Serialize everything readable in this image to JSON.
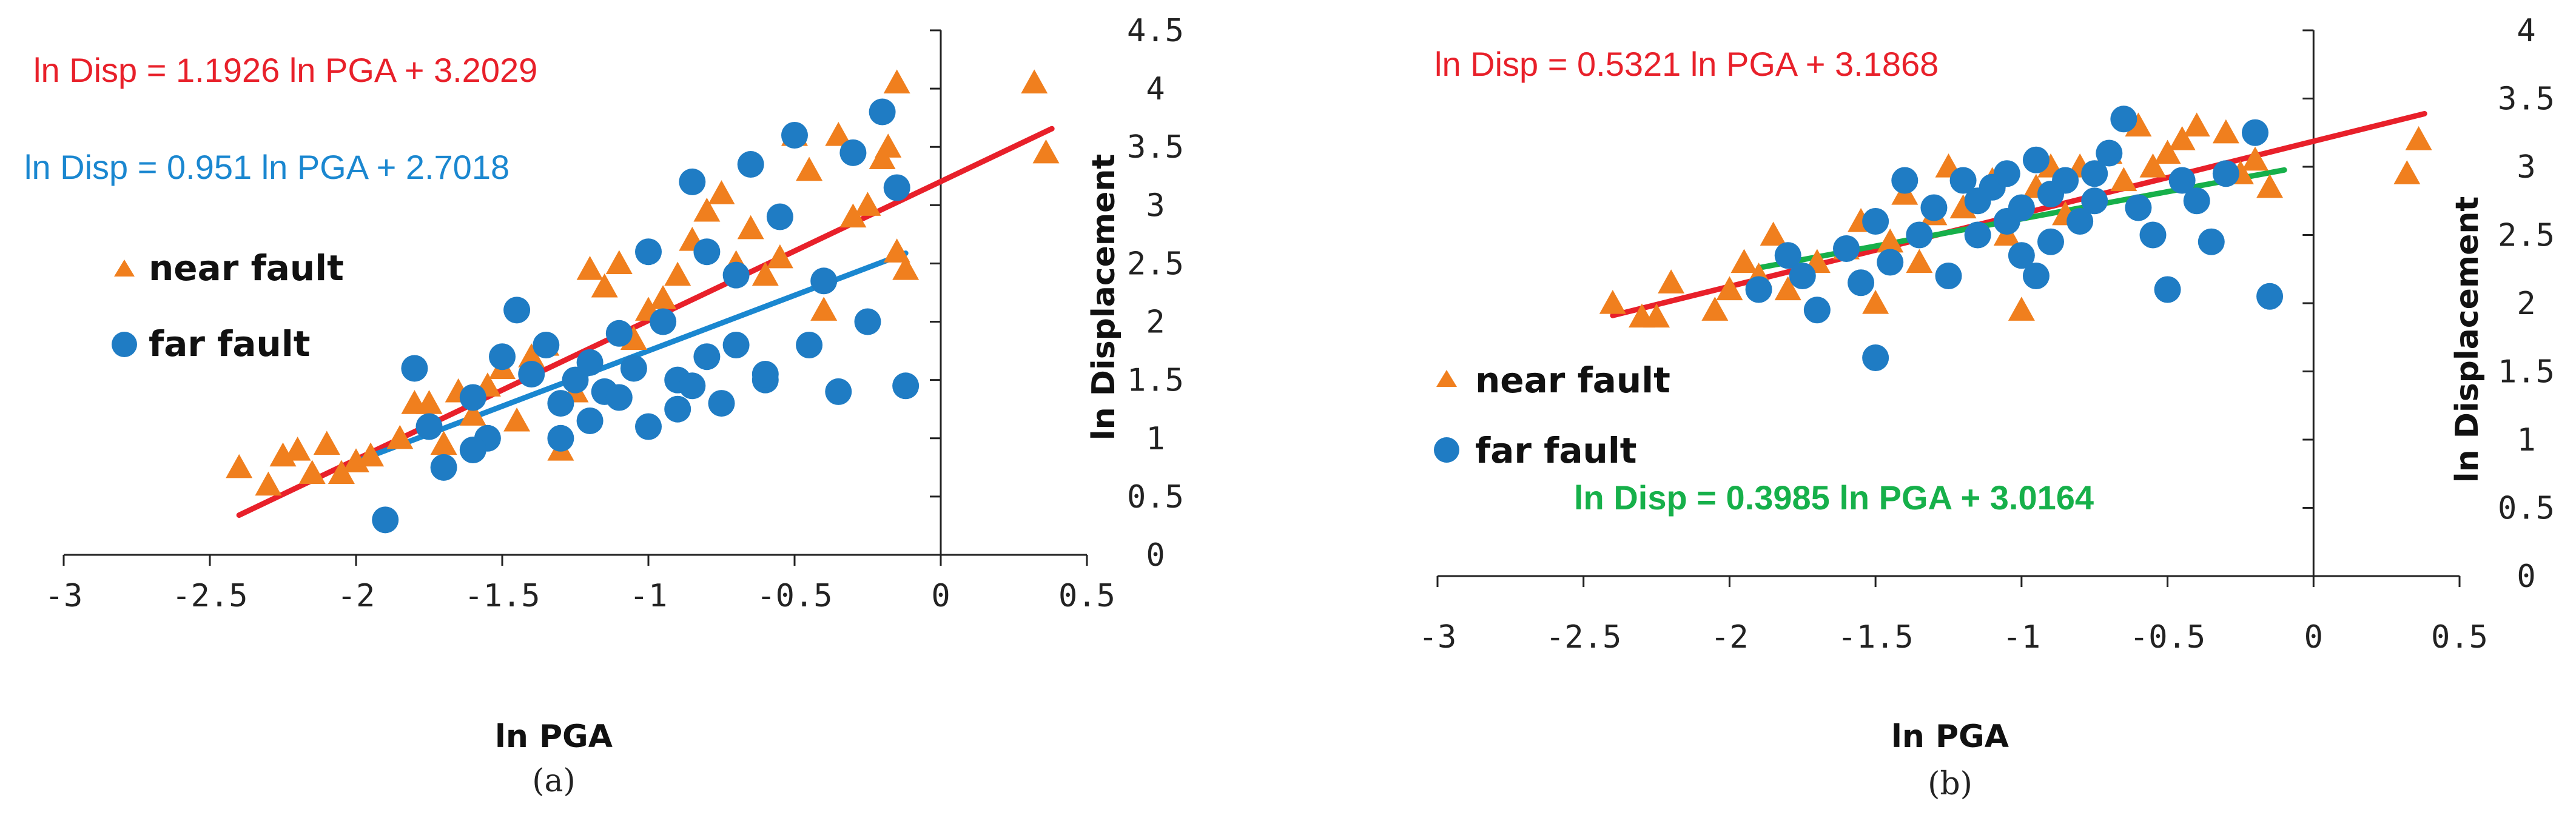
{
  "colors": {
    "near": "#f07f1e",
    "far": "#1f7cc4",
    "fit_red": "#e8202a",
    "fit_blue": "#1a87d0",
    "fit_green": "#16b04a",
    "axis": "#222222"
  },
  "chart_data": [
    {
      "type": "scatter",
      "panel_label": "(a)",
      "xlabel": "ln PGA",
      "ylabel": "ln Displacement",
      "xlim": [
        -3,
        0.5
      ],
      "ylim": [
        0,
        4.5
      ],
      "x_ticks": [
        -3,
        -2.5,
        -2,
        -1.5,
        -1,
        -0.5,
        0,
        0.5
      ],
      "x_tick_labels": [
        "-3",
        "-2.5",
        "-2",
        "-1.5",
        "-1",
        "-0.5",
        "0",
        "0.5"
      ],
      "y_ticks": [
        0,
        0.5,
        1,
        1.5,
        2,
        2.5,
        3,
        3.5,
        4,
        4.5
      ],
      "y_tick_labels": [
        "0",
        "0.5",
        "1",
        "1.5",
        "2",
        "2.5",
        "3",
        "3.5",
        "4",
        "4.5"
      ],
      "legend": {
        "near_label": "near fault",
        "far_label": "far fault"
      },
      "series": [
        {
          "name": "near fault",
          "marker": "triangle",
          "points": [
            [
              -2.4,
              0.75
            ],
            [
              -2.3,
              0.6
            ],
            [
              -2.25,
              0.85
            ],
            [
              -2.2,
              0.9
            ],
            [
              -2.15,
              0.7
            ],
            [
              -2.1,
              0.95
            ],
            [
              -2.05,
              0.7
            ],
            [
              -2.0,
              0.8
            ],
            [
              -1.95,
              0.85
            ],
            [
              -1.85,
              1.0
            ],
            [
              -1.8,
              1.3
            ],
            [
              -1.75,
              1.3
            ],
            [
              -1.7,
              0.95
            ],
            [
              -1.65,
              1.4
            ],
            [
              -1.6,
              1.2
            ],
            [
              -1.55,
              1.45
            ],
            [
              -1.5,
              1.6
            ],
            [
              -1.45,
              1.15
            ],
            [
              -1.4,
              1.7
            ],
            [
              -1.35,
              1.8
            ],
            [
              -1.3,
              0.9
            ],
            [
              -1.25,
              1.4
            ],
            [
              -1.2,
              2.45
            ],
            [
              -1.15,
              2.3
            ],
            [
              -1.1,
              2.5
            ],
            [
              -1.05,
              1.85
            ],
            [
              -1.0,
              2.1
            ],
            [
              -0.95,
              2.2
            ],
            [
              -0.9,
              2.4
            ],
            [
              -0.85,
              2.7
            ],
            [
              -0.8,
              2.95
            ],
            [
              -0.75,
              3.1
            ],
            [
              -0.7,
              2.5
            ],
            [
              -0.65,
              2.8
            ],
            [
              -0.6,
              2.4
            ],
            [
              -0.55,
              2.55
            ],
            [
              -0.5,
              3.6
            ],
            [
              -0.45,
              3.3
            ],
            [
              -0.4,
              2.1
            ],
            [
              -0.35,
              3.6
            ],
            [
              -0.3,
              2.9
            ],
            [
              -0.25,
              3.0
            ],
            [
              -0.2,
              3.4
            ],
            [
              -0.18,
              3.5
            ],
            [
              -0.15,
              4.05
            ],
            [
              -0.15,
              2.6
            ],
            [
              -0.12,
              2.45
            ],
            [
              0.32,
              4.05
            ],
            [
              0.36,
              3.45
            ]
          ]
        },
        {
          "name": "far fault",
          "marker": "circle",
          "points": [
            [
              -1.9,
              0.3
            ],
            [
              -1.8,
              1.6
            ],
            [
              -1.75,
              1.1
            ],
            [
              -1.7,
              0.75
            ],
            [
              -1.6,
              1.35
            ],
            [
              -1.55,
              1.0
            ],
            [
              -1.5,
              1.7
            ],
            [
              -1.45,
              2.1
            ],
            [
              -1.4,
              1.55
            ],
            [
              -1.35,
              1.8
            ],
            [
              -1.3,
              1.3
            ],
            [
              -1.25,
              1.5
            ],
            [
              -1.2,
              1.65
            ],
            [
              -1.15,
              1.4
            ],
            [
              -1.1,
              1.9
            ],
            [
              -1.05,
              1.6
            ],
            [
              -1.0,
              2.6
            ],
            [
              -1.0,
              1.1
            ],
            [
              -0.95,
              2.0
            ],
            [
              -0.9,
              1.5
            ],
            [
              -0.85,
              3.2
            ],
            [
              -0.8,
              1.7
            ],
            [
              -0.8,
              2.6
            ],
            [
              -0.75,
              1.3
            ],
            [
              -0.7,
              1.8
            ],
            [
              -0.7,
              2.4
            ],
            [
              -0.65,
              3.35
            ],
            [
              -0.6,
              1.5
            ],
            [
              -0.55,
              2.9
            ],
            [
              -0.5,
              3.6
            ],
            [
              -0.45,
              1.8
            ],
            [
              -0.4,
              2.35
            ],
            [
              -0.35,
              1.4
            ],
            [
              -0.3,
              3.45
            ],
            [
              -0.25,
              2.0
            ],
            [
              -0.2,
              3.8
            ],
            [
              -0.15,
              3.15
            ],
            [
              -0.12,
              1.45
            ],
            [
              -1.6,
              0.9
            ],
            [
              -1.3,
              1.0
            ],
            [
              -1.2,
              1.15
            ],
            [
              -1.1,
              1.35
            ],
            [
              -0.9,
              1.25
            ],
            [
              -0.85,
              1.45
            ],
            [
              -0.6,
              1.55
            ]
          ]
        }
      ],
      "fits": [
        {
          "name": "near fault fit",
          "equation": "ln Disp = 1.1926 ln PGA + 3.2029",
          "slope": 1.1926,
          "intercept": 3.2029,
          "x_range": [
            -2.4,
            0.38
          ]
        },
        {
          "name": "far fault fit",
          "equation": "ln Disp = 0.951 ln PGA + 2.7018",
          "slope": 0.951,
          "intercept": 2.7018,
          "x_range": [
            -2.0,
            -0.12
          ]
        }
      ]
    },
    {
      "type": "scatter",
      "panel_label": "(b)",
      "xlabel": "ln PGA",
      "ylabel": "ln Displacement",
      "xlim": [
        -3,
        0.5
      ],
      "ylim": [
        0,
        4
      ],
      "x_ticks": [
        -3,
        -2.5,
        -2,
        -1.5,
        -1,
        -0.5,
        0,
        0.5
      ],
      "x_tick_labels": [
        "-3",
        "-2.5",
        "-2",
        "-1.5",
        "-1",
        "-0.5",
        "0",
        "0.5"
      ],
      "y_ticks": [
        0,
        0.5,
        1,
        1.5,
        2,
        2.5,
        3,
        3.5,
        4
      ],
      "y_tick_labels": [
        "0",
        "0.5",
        "1",
        "1.5",
        "2",
        "2.5",
        "3",
        "3.5",
        "4"
      ],
      "legend": {
        "near_label": "near fault",
        "far_label": "far fault"
      },
      "series": [
        {
          "name": "near fault",
          "marker": "triangle",
          "points": [
            [
              -2.4,
              2.0
            ],
            [
              -2.3,
              1.9
            ],
            [
              -2.25,
              1.9
            ],
            [
              -2.2,
              2.15
            ],
            [
              -2.05,
              1.95
            ],
            [
              -2.0,
              2.1
            ],
            [
              -1.95,
              2.3
            ],
            [
              -1.9,
              2.2
            ],
            [
              -1.85,
              2.5
            ],
            [
              -1.8,
              2.1
            ],
            [
              -1.7,
              2.3
            ],
            [
              -1.6,
              2.4
            ],
            [
              -1.55,
              2.6
            ],
            [
              -1.5,
              2.0
            ],
            [
              -1.45,
              2.45
            ],
            [
              -1.4,
              2.8
            ],
            [
              -1.35,
              2.3
            ],
            [
              -1.3,
              2.65
            ],
            [
              -1.25,
              3.0
            ],
            [
              -1.2,
              2.7
            ],
            [
              -1.1,
              2.9
            ],
            [
              -1.05,
              2.5
            ],
            [
              -1.0,
              1.95
            ],
            [
              -0.95,
              2.85
            ],
            [
              -0.9,
              3.0
            ],
            [
              -0.85,
              2.65
            ],
            [
              -0.8,
              3.0
            ],
            [
              -0.7,
              3.1
            ],
            [
              -0.65,
              2.9
            ],
            [
              -0.6,
              3.3
            ],
            [
              -0.55,
              3.0
            ],
            [
              -0.5,
              3.1
            ],
            [
              -0.45,
              3.2
            ],
            [
              -0.4,
              3.3
            ],
            [
              -0.3,
              3.25
            ],
            [
              -0.25,
              2.95
            ],
            [
              -0.2,
              3.05
            ],
            [
              -0.15,
              2.85
            ],
            [
              0.32,
              2.95
            ],
            [
              0.36,
              3.2
            ]
          ]
        },
        {
          "name": "far fault",
          "marker": "circle",
          "points": [
            [
              -1.9,
              2.1
            ],
            [
              -1.8,
              2.35
            ],
            [
              -1.75,
              2.2
            ],
            [
              -1.7,
              1.95
            ],
            [
              -1.6,
              2.4
            ],
            [
              -1.55,
              2.15
            ],
            [
              -1.5,
              2.6
            ],
            [
              -1.5,
              1.6
            ],
            [
              -1.45,
              2.3
            ],
            [
              -1.4,
              2.9
            ],
            [
              -1.35,
              2.5
            ],
            [
              -1.3,
              2.7
            ],
            [
              -1.25,
              2.2
            ],
            [
              -1.2,
              2.9
            ],
            [
              -1.15,
              2.5
            ],
            [
              -1.1,
              2.85
            ],
            [
              -1.05,
              2.6
            ],
            [
              -1.0,
              2.7
            ],
            [
              -1.0,
              2.35
            ],
            [
              -0.95,
              3.05
            ],
            [
              -0.9,
              2.45
            ],
            [
              -0.85,
              2.9
            ],
            [
              -0.8,
              2.6
            ],
            [
              -0.75,
              2.75
            ],
            [
              -0.7,
              3.1
            ],
            [
              -0.65,
              3.35
            ],
            [
              -0.6,
              2.7
            ],
            [
              -0.55,
              2.5
            ],
            [
              -0.5,
              2.1
            ],
            [
              -0.45,
              2.9
            ],
            [
              -0.4,
              2.75
            ],
            [
              -0.35,
              2.45
            ],
            [
              -0.3,
              2.95
            ],
            [
              -0.2,
              3.25
            ],
            [
              -0.15,
              2.05
            ],
            [
              -1.15,
              2.75
            ],
            [
              -1.05,
              2.95
            ],
            [
              -0.95,
              2.2
            ],
            [
              -0.9,
              2.8
            ],
            [
              -0.75,
              2.95
            ]
          ]
        }
      ],
      "fits": [
        {
          "name": "near fault fit",
          "equation": "ln Disp = 0.5321 ln PGA + 3.1868",
          "slope": 0.5321,
          "intercept": 3.1868,
          "x_range": [
            -2.4,
            0.38
          ]
        },
        {
          "name": "far fault fit",
          "equation": "ln Disp = 0.3985 ln PGA + 3.0164",
          "slope": 0.3985,
          "intercept": 3.0164,
          "x_range": [
            -1.9,
            -0.1
          ]
        }
      ]
    }
  ]
}
